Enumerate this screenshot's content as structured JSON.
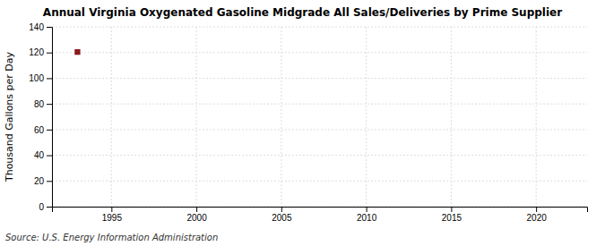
{
  "chart_data": {
    "type": "scatter",
    "title": "Annual Virginia Oxygenated Gasoline Midgrade All Sales/Deliveries by Prime Supplier",
    "ylabel": "Thousand Gallons per Day",
    "source": "Source: U.S. Energy Information Administration",
    "x": [
      1993
    ],
    "values": [
      120.4
    ],
    "color": "#8b1a1a",
    "marker": "square",
    "xlim": [
      1991.5,
      2023
    ],
    "ylim": [
      0,
      140
    ],
    "xticks": [
      1995,
      2000,
      2005,
      2010,
      2015,
      2020
    ],
    "yticks": [
      0,
      20,
      40,
      60,
      80,
      100,
      120,
      140
    ],
    "grid": true
  }
}
